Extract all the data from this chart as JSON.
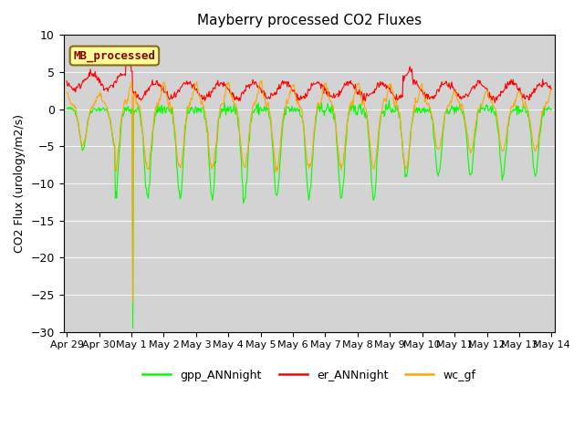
{
  "title": "Mayberry processed CO2 Fluxes",
  "ylabel": "CO2 Flux (urology/m2/s)",
  "ylim": [
    -30,
    10
  ],
  "yticks": [
    -30,
    -25,
    -20,
    -15,
    -10,
    -5,
    0,
    5,
    10
  ],
  "fig_color": "#ffffff",
  "plot_bg_color": "#d3d3d3",
  "line_green": "#00ff00",
  "line_red": "#ff0000",
  "line_orange": "#ffa500",
  "legend_label_green": "gpp_ANNnight",
  "legend_label_red": "er_ANNnight",
  "legend_label_orange": "wc_gf",
  "box_label": "MB_processed",
  "box_text_color": "#8b0000",
  "box_bg_color": "#ffff99",
  "box_border_color": "#8b6914",
  "n_days": 15,
  "n_points_per_day": 48,
  "spike_value": -29.5,
  "xtick_labels": [
    "Apr 29",
    "Apr 30",
    "May 1",
    "May 2",
    "May 3",
    "May 4",
    "May 5",
    "May 6",
    "May 7",
    "May 8",
    "May 9",
    "May 10",
    "May 11",
    "May 12",
    "May 13",
    "May 14"
  ]
}
